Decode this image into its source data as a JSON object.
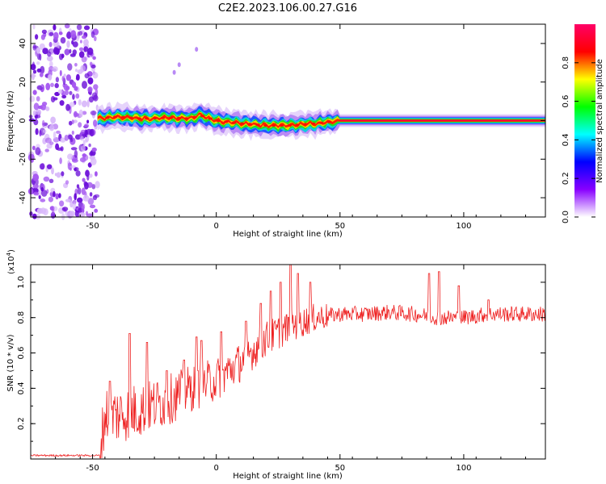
{
  "title": "C2E2.2023.106.00.27.G16",
  "colors": {
    "snr_line": "#ee2222",
    "speck": "#7711ee",
    "axis": "#000000"
  },
  "chart_data": [
    {
      "type": "heatmap",
      "xlabel": "Height of straight line (km)",
      "ylabel": "Frequency (Hz)",
      "xlim": [
        -75,
        133
      ],
      "ylim": [
        -50,
        50
      ],
      "xticks": [
        -50,
        0,
        50,
        100
      ],
      "yticks": [
        -40,
        -20,
        0,
        20,
        40
      ],
      "colorbar": {
        "label": "Normalized spectral amplitude",
        "range": [
          0,
          1
        ],
        "ticks": [
          0.0,
          0.2,
          0.4,
          0.6,
          0.8
        ],
        "colormap": [
          "#ffffff",
          "#8800ff",
          "#0000ff",
          "#00ffff",
          "#00ff00",
          "#ffff00",
          "#ff0000",
          "#ff0066"
        ]
      },
      "center_line": [
        {
          "x": -48,
          "y": 1
        },
        {
          "x": -40,
          "y": 2
        },
        {
          "x": -30,
          "y": 1
        },
        {
          "x": -20,
          "y": 1.5
        },
        {
          "x": -10,
          "y": 1
        },
        {
          "x": -7,
          "y": 3
        },
        {
          "x": 0,
          "y": 0
        },
        {
          "x": 10,
          "y": -1.5
        },
        {
          "x": 20,
          "y": -2.5
        },
        {
          "x": 30,
          "y": -2.5
        },
        {
          "x": 40,
          "y": -1.5
        },
        {
          "x": 50,
          "y": 0
        },
        {
          "x": 60,
          "y": 0
        },
        {
          "x": 80,
          "y": 0
        },
        {
          "x": 100,
          "y": 0
        },
        {
          "x": 133,
          "y": 0
        }
      ]
    },
    {
      "type": "line",
      "xlabel": "Height of straight line (km)",
      "ylabel": "SNR (10 * v/v)",
      "scale_label": "(x10",
      "scale_exp": "4",
      "xlim": [
        -75,
        133
      ],
      "ylim": [
        0,
        1.1
      ],
      "xticks": [
        -50,
        0,
        50,
        100
      ],
      "yticks": [
        0.2,
        0.4,
        0.6,
        0.8,
        1.0
      ],
      "series": [
        {
          "envelope": [
            {
              "x": -75,
              "y": 0.02
            },
            {
              "x": -47,
              "y": 0.02
            },
            {
              "x": -45,
              "y": 0.25
            },
            {
              "x": -40,
              "y": 0.25
            },
            {
              "x": -30,
              "y": 0.28
            },
            {
              "x": -20,
              "y": 0.33
            },
            {
              "x": -10,
              "y": 0.4
            },
            {
              "x": 0,
              "y": 0.45
            },
            {
              "x": 10,
              "y": 0.55
            },
            {
              "x": 20,
              "y": 0.68
            },
            {
              "x": 30,
              "y": 0.75
            },
            {
              "x": 40,
              "y": 0.8
            },
            {
              "x": 50,
              "y": 0.82
            },
            {
              "x": 60,
              "y": 0.82
            },
            {
              "x": 70,
              "y": 0.83
            },
            {
              "x": 80,
              "y": 0.82
            },
            {
              "x": 90,
              "y": 0.8
            },
            {
              "x": 100,
              "y": 0.8
            },
            {
              "x": 110,
              "y": 0.82
            },
            {
              "x": 120,
              "y": 0.82
            },
            {
              "x": 133,
              "y": 0.82
            }
          ],
          "spikes": [
            {
              "x": -43,
              "y": 0.44
            },
            {
              "x": -35,
              "y": 0.71
            },
            {
              "x": -28,
              "y": 0.66
            },
            {
              "x": -20,
              "y": 0.5
            },
            {
              "x": -13,
              "y": 0.56
            },
            {
              "x": -8,
              "y": 0.69
            },
            {
              "x": -6,
              "y": 0.67
            },
            {
              "x": 2,
              "y": 0.72
            },
            {
              "x": 12,
              "y": 0.78
            },
            {
              "x": 18,
              "y": 0.88
            },
            {
              "x": 22,
              "y": 0.95
            },
            {
              "x": 26,
              "y": 1.0
            },
            {
              "x": 30,
              "y": 1.1
            },
            {
              "x": 33,
              "y": 1.05
            },
            {
              "x": 38,
              "y": 1.0
            },
            {
              "x": 86,
              "y": 1.05
            },
            {
              "x": 90,
              "y": 1.06
            },
            {
              "x": 98,
              "y": 0.98
            },
            {
              "x": 110,
              "y": 0.9
            }
          ]
        }
      ]
    }
  ]
}
